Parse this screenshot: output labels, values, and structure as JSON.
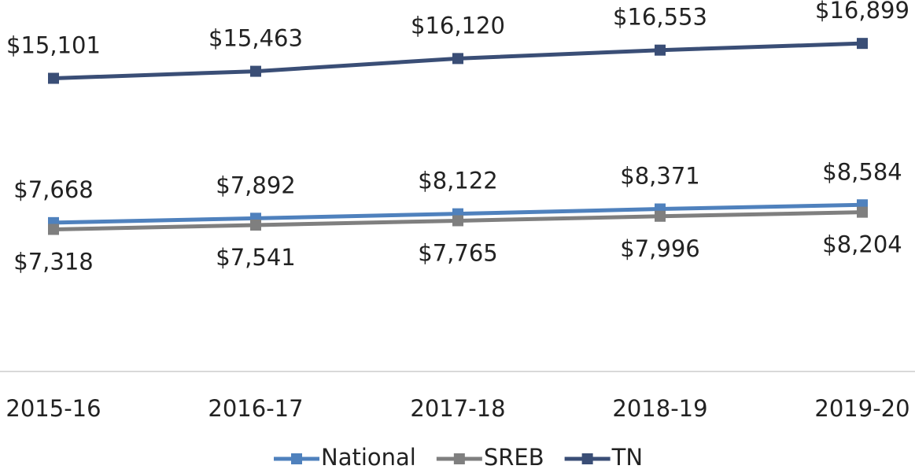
{
  "chart_data": {
    "type": "line",
    "categories": [
      "2015-16",
      "2016-17",
      "2017-18",
      "2018-19",
      "2019-20"
    ],
    "series": [
      {
        "name": "National",
        "color": "#4f81bd",
        "values": [
          7668,
          7892,
          8122,
          8371,
          8584
        ],
        "value_labels": [
          "$7,668",
          "$7,892",
          "$8,122",
          "$8,371",
          "$8,584"
        ]
      },
      {
        "name": "SREB",
        "color": "#7f7f7f",
        "values": [
          7318,
          7541,
          7765,
          7996,
          8204
        ],
        "value_labels": [
          "$7,318",
          "$7,541",
          "$7,765",
          "$7,996",
          "$8,204"
        ]
      },
      {
        "name": "TN",
        "color": "#3a4e76",
        "values": [
          15101,
          15463,
          16120,
          16553,
          16899
        ],
        "value_labels": [
          "$15,101",
          "$15,463",
          "$16,120",
          "$16,553",
          "$16,899"
        ]
      }
    ],
    "ylim": [
      0,
      18000
    ],
    "legend": "bottom"
  }
}
